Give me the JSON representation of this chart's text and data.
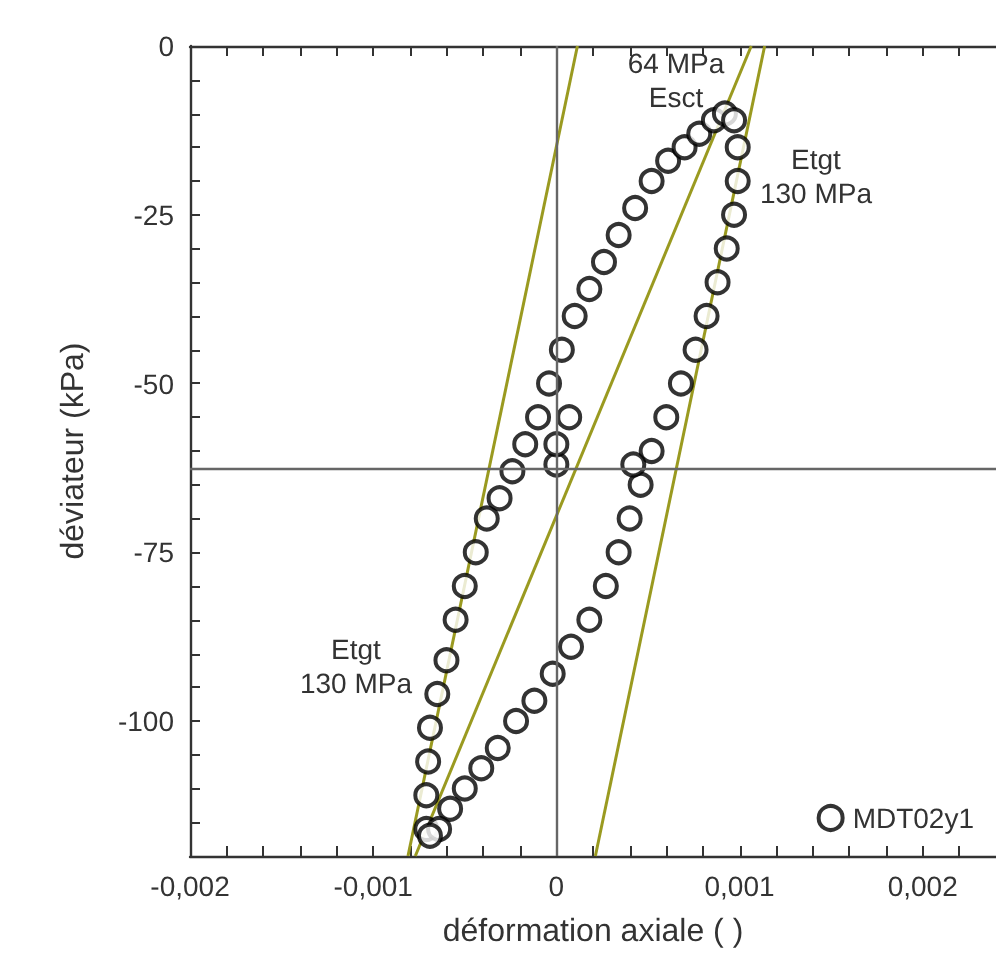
{
  "chart_data": {
    "type": "scatter",
    "xlabel": "déformation axiale ( )",
    "ylabel": "déviateur (kPa)",
    "xlim": [
      -0.002,
      0.0024
    ],
    "ylim": [
      -120,
      0
    ],
    "xticks": [
      {
        "value": -0.002,
        "label": "-0,002"
      },
      {
        "value": -0.0018,
        "label": null
      },
      {
        "value": -0.0016,
        "label": null
      },
      {
        "value": -0.0014,
        "label": null
      },
      {
        "value": -0.0012,
        "label": null
      },
      {
        "value": -0.001,
        "label": "-0,001"
      },
      {
        "value": -0.0008,
        "label": null
      },
      {
        "value": -0.0006,
        "label": null
      },
      {
        "value": -0.0004,
        "label": null
      },
      {
        "value": -0.0002,
        "label": null
      },
      0,
      {
        "value": 0.0002,
        "label": null
      },
      {
        "value": 0.0004,
        "label": null
      },
      {
        "value": 0.0006,
        "label": null
      },
      {
        "value": 0.0008,
        "label": null
      },
      {
        "value": 0.001,
        "label": "0,001"
      },
      {
        "value": 0.0012,
        "label": null
      },
      {
        "value": 0.0014,
        "label": null
      },
      {
        "value": 0.0016,
        "label": null
      },
      {
        "value": 0.0018,
        "label": null
      },
      {
        "value": 0.002,
        "label": "0,002"
      },
      {
        "value": 0.0022,
        "label": null
      }
    ],
    "yticks": [
      {
        "value": -120,
        "label": null
      },
      {
        "value": -115,
        "label": null
      },
      {
        "value": -110,
        "label": null
      },
      {
        "value": -105,
        "label": null
      },
      -100,
      {
        "value": -95,
        "label": null
      },
      {
        "value": -90,
        "label": null
      },
      {
        "value": -85,
        "label": null
      },
      {
        "value": -80,
        "label": null
      },
      -75,
      {
        "value": -70,
        "label": null
      },
      {
        "value": -65,
        "label": null
      },
      {
        "value": -60,
        "label": null
      },
      {
        "value": -55,
        "label": null
      },
      -50,
      {
        "value": -45,
        "label": null
      },
      {
        "value": -40,
        "label": null
      },
      {
        "value": -35,
        "label": null
      },
      {
        "value": -30,
        "label": null
      },
      -25,
      {
        "value": -20,
        "label": null
      },
      {
        "value": -15,
        "label": null
      },
      {
        "value": -10,
        "label": null
      },
      {
        "value": -5,
        "label": null
      },
      0
    ],
    "grid": false,
    "legend": "bottom right",
    "ref_lines": [
      {
        "axis": "x",
        "value": 0,
        "color": "#666666"
      },
      {
        "axis": "y",
        "value": -62.5,
        "color": "#666666"
      }
    ],
    "annotations": [
      "64 MPa\nEsct",
      "Etgt\n130 MPa",
      "Etgt\n130 MPa"
    ],
    "series": [
      {
        "name": "MDT02y1",
        "marker": "circle",
        "color": "#000000",
        "x": [
          -0.00071,
          -0.00071,
          -0.0007,
          -0.00069,
          -0.00065,
          -0.0006,
          -0.00055,
          -0.0005,
          -0.00044,
          -0.00038,
          -0.00031,
          -0.00024,
          -0.00017,
          -0.0001,
          -4e-05,
          3e-05,
          0.0001,
          0.00018,
          0.00026,
          0.00034,
          0.00043,
          0.00052,
          0.00061,
          0.0007,
          0.00078,
          0.00086,
          0.00092,
          0.00097,
          0.00099,
          0.00099,
          0.00097,
          0.00093,
          0.00088,
          0.00082,
          0.00076,
          0.00068,
          0.0006,
          0.00052,
          0.00046,
          0.0004,
          0.00034,
          0.00027,
          0.00018,
          8e-05,
          -2e-05,
          -0.00012,
          -0.00022,
          -0.00032,
          -0.00041,
          -0.0005,
          -0.00058,
          -0.00064,
          -0.00069,
          0,
          0,
          7e-05,
          0.00042
        ],
        "values": [
          -116,
          -111,
          -106,
          -101,
          -96,
          -91,
          -85,
          -80,
          -75,
          -70,
          -67,
          -63,
          -59,
          -55,
          -50,
          -45,
          -40,
          -36,
          -32,
          -28,
          -24,
          -20,
          -17,
          -15,
          -13,
          -11,
          -10,
          -11,
          -15,
          -20,
          -25,
          -30,
          -35,
          -40,
          -45,
          -50,
          -55,
          -60,
          -65,
          -70,
          -75,
          -80,
          -85,
          -89,
          -93,
          -97,
          -100,
          -104,
          -107,
          -110,
          -113,
          -116,
          -117,
          -62,
          -59,
          -55,
          -62
        ]
      },
      {
        "type": "line",
        "marker": "none",
        "color": "#9a9a20",
        "x": [
          -0.00081,
          0.000115
        ],
        "values": [
          -120,
          0
        ]
      },
      {
        "type": "line",
        "marker": "none",
        "color": "#9a9a20",
        "x": [
          -0.00077,
          0.001064
        ],
        "values": [
          -120,
          0
        ]
      },
      {
        "type": "line",
        "marker": "none",
        "color": "#9a9a20",
        "x": [
          0.000213,
          0.001137
        ],
        "values": [
          -120,
          0
        ]
      }
    ]
  }
}
